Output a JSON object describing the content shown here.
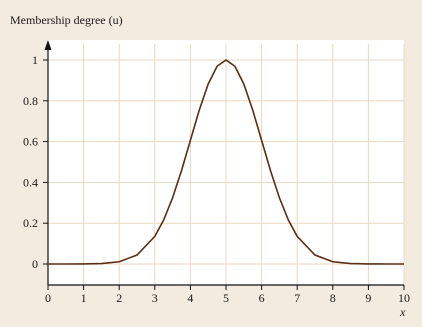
{
  "chart_data": {
    "type": "line",
    "title": "",
    "ylabel": "Membership degree (u)",
    "xlabel": "x",
    "xlim": [
      0,
      10
    ],
    "ylim": [
      0,
      1
    ],
    "x_ticks": [
      "0",
      "1",
      "2",
      "3",
      "4",
      "5",
      "6",
      "7",
      "8",
      "9",
      "10"
    ],
    "y_ticks": [
      "0",
      "0.2",
      "0.4",
      "0.6",
      "0.8",
      "1"
    ],
    "grid": true,
    "series": [
      {
        "x": [
          0,
          0.5,
          1,
          1.5,
          2,
          2.5,
          3,
          3.25,
          3.5,
          3.75,
          4,
          4.25,
          4.5,
          4.75,
          5,
          5.25,
          5.5,
          5.75,
          6,
          6.25,
          6.5,
          6.75,
          7,
          7.5,
          8,
          8.5,
          9,
          9.5,
          10
        ],
        "y": [
          0.0,
          0.0,
          0.0003,
          0.0022,
          0.0111,
          0.0439,
          0.1353,
          0.2163,
          0.3247,
          0.4578,
          0.6065,
          0.7548,
          0.8825,
          0.9692,
          1.0,
          0.9692,
          0.8825,
          0.7548,
          0.6065,
          0.4578,
          0.3247,
          0.2163,
          0.1353,
          0.0439,
          0.0111,
          0.0022,
          0.0003,
          0.0,
          0.0
        ]
      }
    ]
  }
}
